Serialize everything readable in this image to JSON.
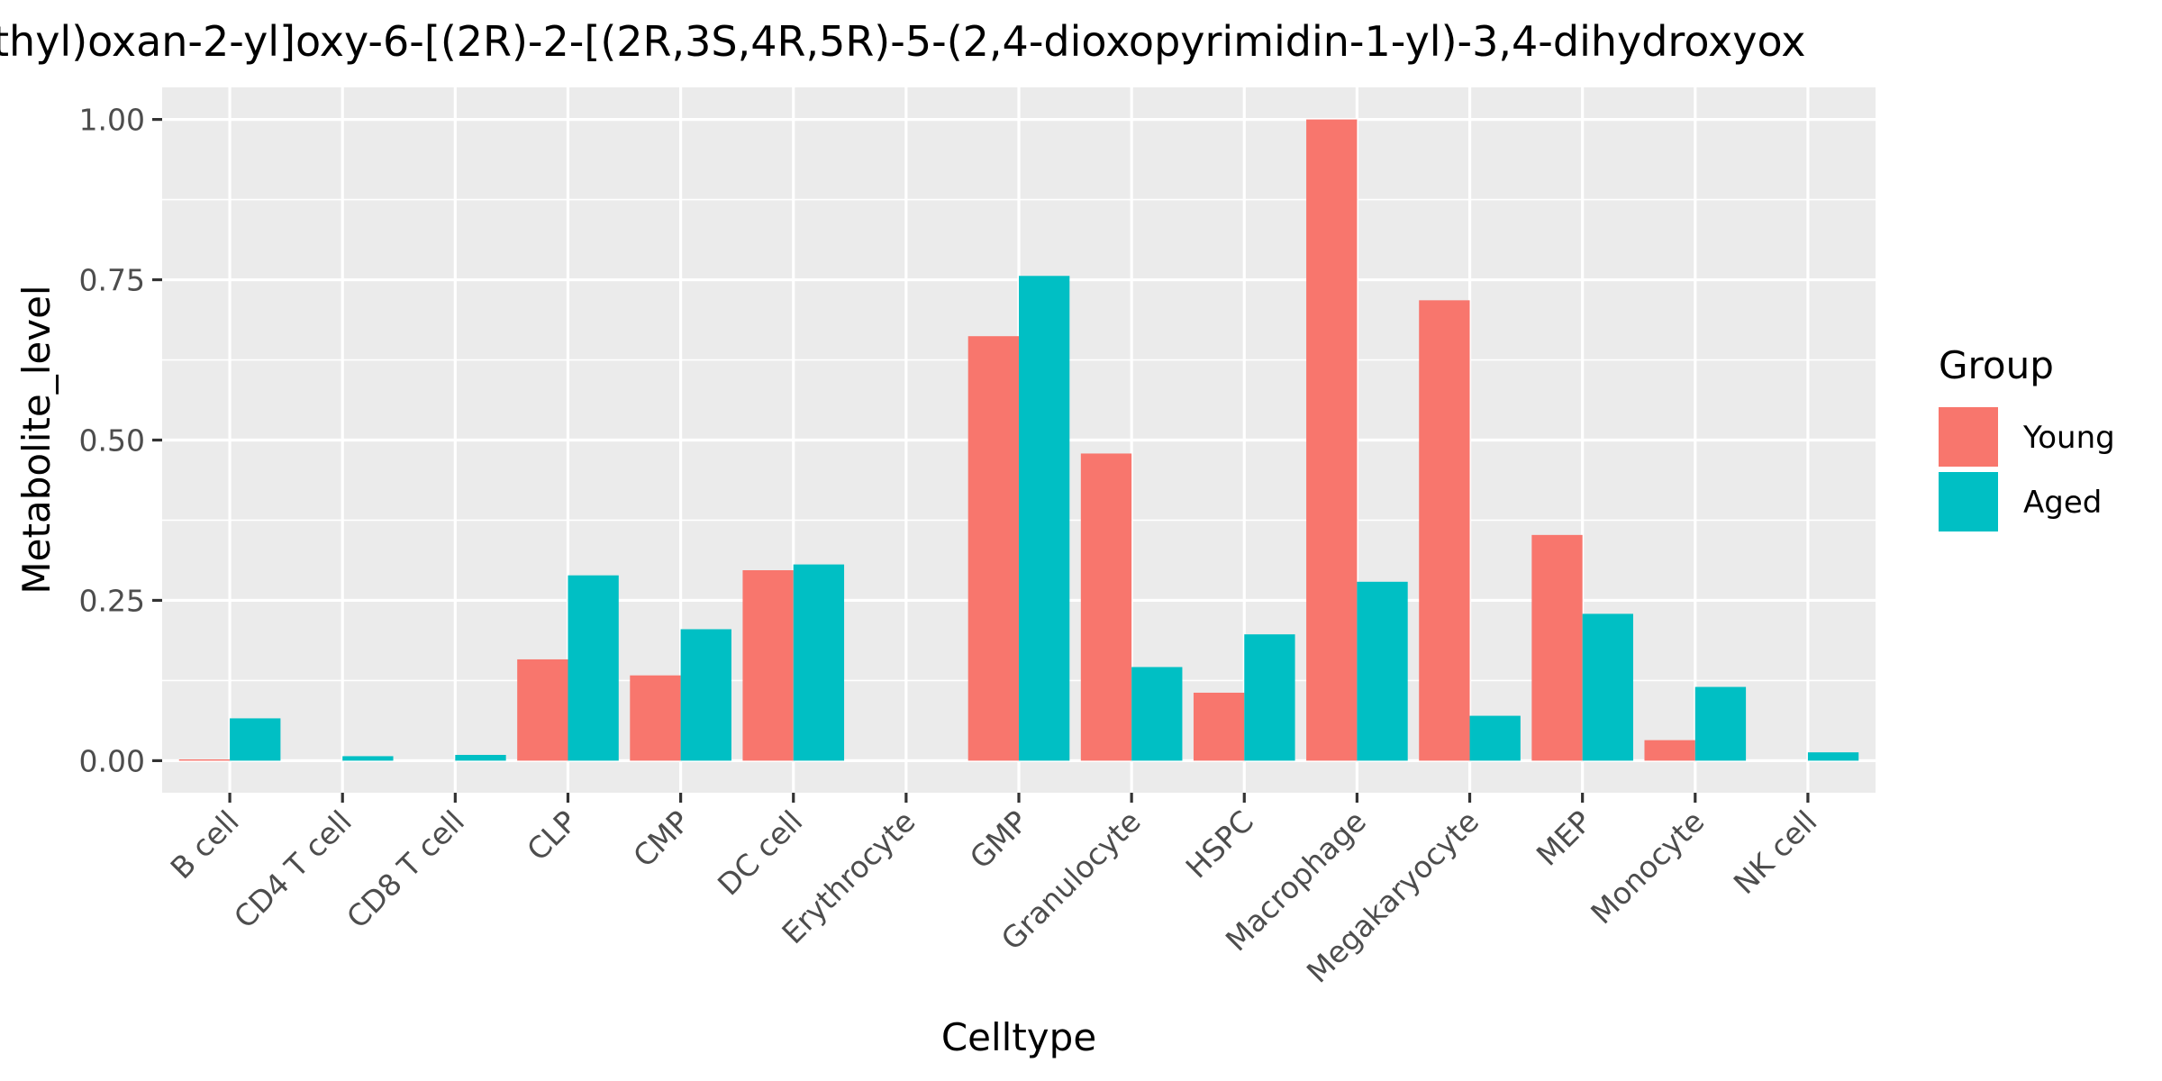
{
  "chart_data": {
    "type": "bar",
    "title": "thyl)oxan-2-yl]oxy-6-[(2R)-2-[(2R,3S,4R,5R)-5-(2,4-dioxopyrimidin-1-yl)-3,4-dihydroxyox",
    "xlabel": "Celltype",
    "ylabel": "Metabolite_level",
    "categories": [
      "B cell",
      "CD4 T cell",
      "CD8 T cell",
      "CLP",
      "CMP",
      "DC cell",
      "Erythrocyte",
      "GMP",
      "Granulocyte",
      "HSPC",
      "Macrophage",
      "Megakaryocyte",
      "MEP",
      "Monocyte",
      "NK cell"
    ],
    "series": [
      {
        "name": "Young",
        "color": "#F8766D",
        "values": [
          0.002,
          0.0,
          0.0,
          0.158,
          0.133,
          0.297,
          0.0,
          0.662,
          0.479,
          0.106,
          1.0,
          0.718,
          0.352,
          0.032,
          0.0
        ]
      },
      {
        "name": "Aged",
        "color": "#00BFC4",
        "values": [
          0.066,
          0.007,
          0.009,
          0.289,
          0.205,
          0.306,
          0.0,
          0.756,
          0.146,
          0.197,
          0.279,
          0.07,
          0.229,
          0.115,
          0.013
        ]
      }
    ],
    "ylim": [
      -0.05,
      1.05
    ],
    "yticks": [
      0.0,
      0.25,
      0.5,
      0.75,
      1.0
    ],
    "ytick_labels": [
      "0.00",
      "0.25",
      "0.50",
      "0.75",
      "1.00"
    ],
    "legend": {
      "title": "Group",
      "placement": "right"
    },
    "grid": true
  }
}
